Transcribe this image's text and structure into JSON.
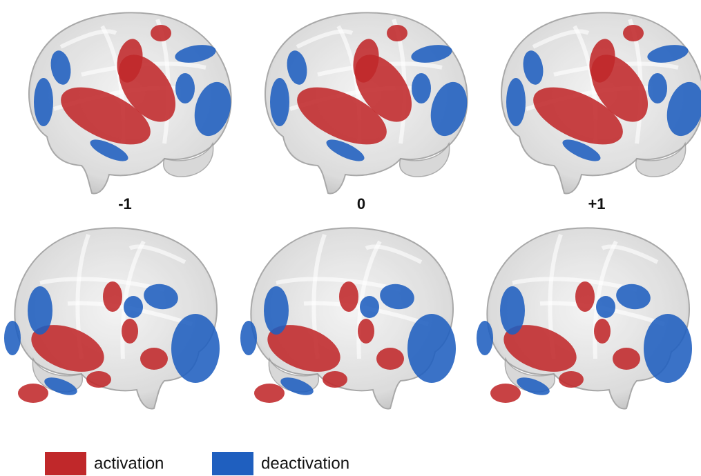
{
  "panels": {
    "labels": [
      "-1",
      "0",
      "+1"
    ]
  },
  "legend": {
    "items": [
      {
        "label": "activation",
        "color": "#c0282a"
      },
      {
        "label": "deactivation",
        "color": "#1f5fbf"
      }
    ]
  }
}
